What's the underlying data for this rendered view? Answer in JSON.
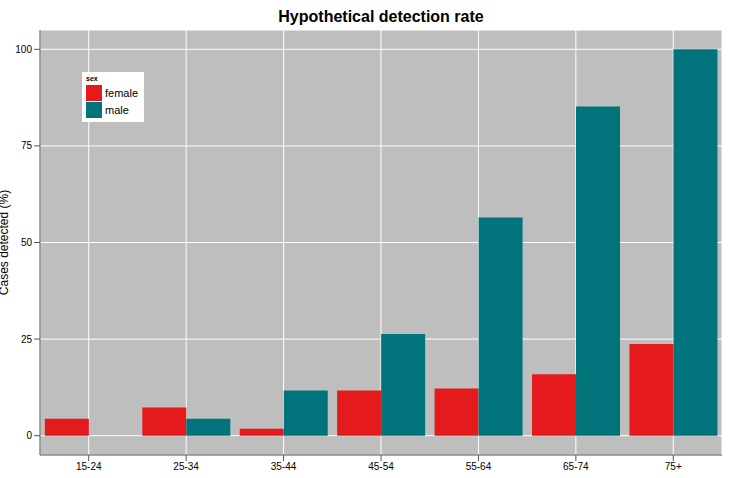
{
  "chart_data": {
    "type": "bar",
    "title": "Hypothetical detection rate",
    "y_label": "Cases detected (%)",
    "legend_title": "sex",
    "categories": [
      "15-24",
      "25-34",
      "35-44",
      "45-54",
      "55-64",
      "65-74",
      "75+"
    ],
    "series": [
      {
        "name": "female",
        "color": "#e41a1c",
        "values": [
          4.4,
          7.3,
          1.8,
          11.7,
          12.2,
          15.9,
          23.7
        ]
      },
      {
        "name": "male",
        "color": "#00747a",
        "values": [
          0,
          4.4,
          11.7,
          26.3,
          56.5,
          85.2,
          100
        ]
      }
    ],
    "ylim": [
      -5,
      105
    ],
    "yticks": [
      0,
      25,
      50,
      75,
      100
    ],
    "grid": true,
    "legend": "upper left"
  }
}
